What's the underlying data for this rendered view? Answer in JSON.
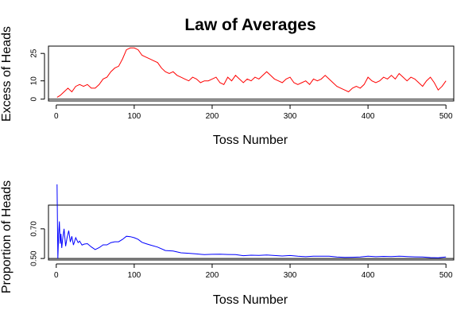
{
  "title": "Law of Averages",
  "chart_data": [
    {
      "type": "line",
      "xlabel": "Toss Number",
      "ylabel": "Excess of Heads",
      "xlim": [
        -10,
        510
      ],
      "ylim": [
        -1,
        29
      ],
      "x_ticks": [
        0,
        100,
        200,
        300,
        400,
        500
      ],
      "y_ticks": [
        0,
        10,
        25
      ],
      "reference_line": 0,
      "color": "#ff0000",
      "series": [
        {
          "x": [
            1,
            5,
            10,
            15,
            20,
            25,
            30,
            35,
            40,
            45,
            50,
            55,
            60,
            65,
            70,
            75,
            80,
            85,
            90,
            95,
            100,
            105,
            110,
            115,
            120,
            125,
            130,
            135,
            140,
            145,
            150,
            155,
            160,
            165,
            170,
            175,
            180,
            185,
            190,
            195,
            200,
            205,
            210,
            215,
            220,
            225,
            230,
            235,
            240,
            245,
            250,
            255,
            260,
            265,
            270,
            275,
            280,
            285,
            290,
            295,
            300,
            305,
            310,
            315,
            320,
            325,
            330,
            335,
            340,
            345,
            350,
            355,
            360,
            365,
            370,
            375,
            380,
            385,
            390,
            395,
            400,
            405,
            410,
            415,
            420,
            425,
            430,
            435,
            440,
            445,
            450,
            455,
            460,
            465,
            470,
            475,
            480,
            485,
            490,
            495,
            500
          ],
          "values": [
            1,
            2,
            4,
            6,
            4,
            7,
            8,
            7,
            8,
            6,
            6,
            8,
            11,
            12,
            15,
            17,
            18,
            22,
            27,
            28,
            28,
            27,
            24,
            23,
            22,
            21,
            20,
            17,
            15,
            14,
            15,
            13,
            12,
            11,
            10,
            12,
            11,
            9,
            10,
            10,
            11,
            12,
            9,
            8,
            12,
            10,
            13,
            11,
            9,
            11,
            10,
            12,
            11,
            13,
            15,
            13,
            11,
            10,
            9,
            11,
            12,
            9,
            8,
            9,
            10,
            8,
            11,
            10,
            11,
            13,
            11,
            9,
            7,
            6,
            5,
            4,
            6,
            7,
            6,
            8,
            12,
            10,
            9,
            10,
            12,
            11,
            13,
            11,
            14,
            12,
            10,
            12,
            11,
            9,
            7,
            10,
            12,
            9,
            5,
            7,
            10
          ]
        }
      ]
    },
    {
      "type": "line",
      "xlabel": "Toss Number",
      "ylabel": "Proportion of Heads",
      "xlim": [
        -10,
        510
      ],
      "ylim": [
        0.49,
        0.86
      ],
      "x_ticks": [
        0,
        100,
        200,
        300,
        400,
        500
      ],
      "y_ticks": [
        0.5,
        0.7
      ],
      "reference_line": 0.5,
      "color": "#0000ff",
      "series": [
        {
          "x": [
            1,
            2,
            3,
            4,
            5,
            6,
            7,
            8,
            10,
            12,
            14,
            16,
            18,
            20,
            22,
            25,
            28,
            30,
            33,
            36,
            40,
            45,
            50,
            55,
            60,
            65,
            70,
            75,
            80,
            85,
            90,
            95,
            100,
            105,
            110,
            115,
            120,
            130,
            140,
            150,
            160,
            170,
            180,
            190,
            200,
            210,
            220,
            230,
            240,
            250,
            260,
            270,
            280,
            290,
            300,
            310,
            320,
            330,
            340,
            350,
            360,
            370,
            380,
            390,
            400,
            410,
            420,
            430,
            440,
            450,
            460,
            470,
            480,
            490,
            500
          ],
          "values": [
            1.0,
            0.5,
            0.667,
            0.75,
            0.6,
            0.667,
            0.571,
            0.625,
            0.7,
            0.583,
            0.643,
            0.688,
            0.611,
            0.65,
            0.591,
            0.64,
            0.607,
            0.617,
            0.591,
            0.597,
            0.6,
            0.578,
            0.56,
            0.573,
            0.592,
            0.592,
            0.607,
            0.613,
            0.613,
            0.629,
            0.65,
            0.647,
            0.64,
            0.629,
            0.609,
            0.6,
            0.592,
            0.577,
            0.554,
            0.55,
            0.538,
            0.535,
            0.531,
            0.526,
            0.528,
            0.529,
            0.527,
            0.526,
            0.519,
            0.522,
            0.521,
            0.524,
            0.52,
            0.517,
            0.52,
            0.515,
            0.512,
            0.515,
            0.516,
            0.516,
            0.51,
            0.507,
            0.508,
            0.51,
            0.515,
            0.512,
            0.514,
            0.513,
            0.516,
            0.513,
            0.511,
            0.51,
            0.506,
            0.505,
            0.51
          ]
        }
      ]
    }
  ]
}
